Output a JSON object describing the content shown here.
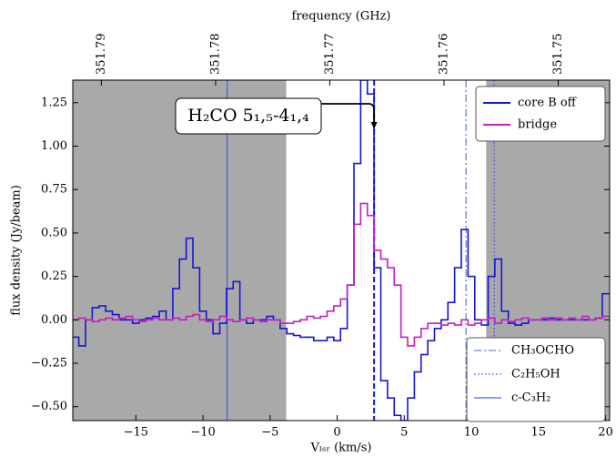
{
  "chart_data": {
    "type": "step",
    "xlabel": "Vₗₛᵣ (km/s)",
    "ylabel": "flux density (Jy/beam)",
    "x2label": "frequency (GHz)",
    "xlim": [
      -19.7,
      20.3
    ],
    "ylim": [
      -0.58,
      1.38
    ],
    "x2lim": [
      351.7925,
      351.7455
    ],
    "xticks": [
      {
        "value": -15,
        "label": "−15"
      },
      {
        "value": -10,
        "label": "−10"
      },
      {
        "value": -5,
        "label": "−5"
      },
      0,
      5,
      10,
      15,
      20
    ],
    "yticks": [
      {
        "value": -0.5,
        "label": "−0.50"
      },
      {
        "value": -0.25,
        "label": "−0.25"
      },
      {
        "value": 0,
        "label": "0.00"
      },
      {
        "value": 0.25,
        "label": "0.25"
      },
      {
        "value": 0.5,
        "label": "0.50"
      },
      {
        "value": 0.75,
        "label": "0.75"
      },
      {
        "value": 1,
        "label": "1.00"
      },
      {
        "value": 1.25,
        "label": "1.25"
      }
    ],
    "x2ticks": [
      351.79,
      351.78,
      351.77,
      351.76,
      351.75
    ],
    "shaded": [
      {
        "range": [
          -19.7,
          -3.8
        ],
        "color": "#a9a9a9"
      },
      {
        "range": [
          11.1,
          20.3
        ],
        "color": "#a9a9a9"
      }
    ],
    "x": [
      -19.5,
      -19,
      -18.5,
      -18,
      -17.5,
      -17,
      -16.5,
      -16,
      -15.5,
      -15,
      -14.5,
      -14,
      -13.5,
      -13,
      -12.5,
      -12,
      -11.5,
      -11,
      -10.5,
      -10,
      -9.5,
      -9,
      -8.5,
      -8,
      -7.5,
      -7,
      -6.5,
      -6,
      -5.5,
      -5,
      -4.5,
      -4,
      -3.5,
      -3,
      -2.5,
      -2,
      -1.5,
      -1,
      -0.5,
      0,
      0.5,
      1,
      1.5,
      2,
      2.5,
      3,
      3.5,
      4,
      4.5,
      5,
      5.5,
      6,
      6.5,
      7,
      7.5,
      8,
      8.5,
      9,
      9.5,
      10,
      10.5,
      11,
      11.5,
      12,
      12.5,
      13,
      13.5,
      14,
      14.5,
      15,
      15.5,
      16,
      16.5,
      17,
      17.5,
      18,
      18.5,
      19,
      19.5,
      20
    ],
    "series": [
      {
        "name": "core B off",
        "color": "#1515d6",
        "values": [
          -0.1,
          -0.15,
          0.0,
          0.07,
          0.08,
          0.05,
          0.03,
          0.0,
          0.0,
          -0.02,
          0.0,
          0.01,
          0.02,
          0.05,
          0.0,
          0.18,
          0.35,
          0.47,
          0.3,
          0.05,
          0.0,
          -0.08,
          -0.02,
          0.18,
          0.22,
          0.0,
          -0.02,
          0.0,
          0.0,
          0.02,
          0.0,
          -0.05,
          -0.08,
          -0.09,
          -0.1,
          -0.1,
          -0.12,
          -0.12,
          -0.1,
          -0.12,
          -0.05,
          0.2,
          0.9,
          1.38,
          1.3,
          0.3,
          -0.35,
          -0.45,
          -0.55,
          -0.58,
          -0.45,
          -0.3,
          -0.2,
          -0.12,
          -0.05,
          0.0,
          0.1,
          0.3,
          0.52,
          0.25,
          0.0,
          -0.03,
          0.25,
          0.35,
          0.05,
          -0.02,
          -0.03,
          -0.02,
          0.0,
          0.0,
          0.0,
          0.01,
          0.0,
          0.0,
          0.0,
          0.0,
          0.0,
          0.0,
          0.01,
          0.15
        ]
      },
      {
        "name": "bridge",
        "color": "#c21ec2",
        "values": [
          0.0,
          0.01,
          0.0,
          -0.01,
          0.0,
          0.01,
          0.0,
          0.01,
          0.02,
          0.0,
          -0.01,
          0.0,
          0.01,
          0.0,
          0.0,
          0.01,
          0.0,
          0.02,
          0.03,
          0.0,
          -0.01,
          0.0,
          0.02,
          0.0,
          -0.01,
          0.0,
          0.01,
          0.0,
          -0.01,
          0.0,
          0.0,
          -0.02,
          -0.02,
          -0.01,
          0.0,
          0.02,
          0.01,
          0.02,
          0.05,
          0.08,
          0.12,
          0.2,
          0.55,
          0.67,
          0.6,
          0.4,
          0.35,
          0.3,
          0.2,
          -0.1,
          -0.15,
          -0.1,
          -0.05,
          -0.02,
          -0.02,
          -0.03,
          -0.02,
          -0.03,
          0.0,
          -0.03,
          -0.02,
          0.0,
          0.01,
          -0.02,
          0.0,
          -0.01,
          0.0,
          0.01,
          0.0,
          0.0,
          0.01,
          0.0,
          0.01,
          0.0,
          0.01,
          0.0,
          0.02,
          0.0,
          0.01,
          0.02
        ]
      }
    ],
    "vlines": [
      {
        "x": 2.75,
        "color": "#1515d6",
        "style": "dashed"
      },
      {
        "x": 9.6,
        "color": "#6a7fe6",
        "style": "dashdot",
        "name": "CH₃OCHO"
      },
      {
        "x": 11.7,
        "color": "#4a4ae0",
        "style": "dotted",
        "name": "C₂H₅OH"
      },
      {
        "x": -8.2,
        "color": "#5060e0",
        "style": "solid",
        "name": "c-C₃H₂"
      }
    ],
    "annotation": {
      "text": "H₂CO 5₁,₅-4₁,₄"
    }
  }
}
